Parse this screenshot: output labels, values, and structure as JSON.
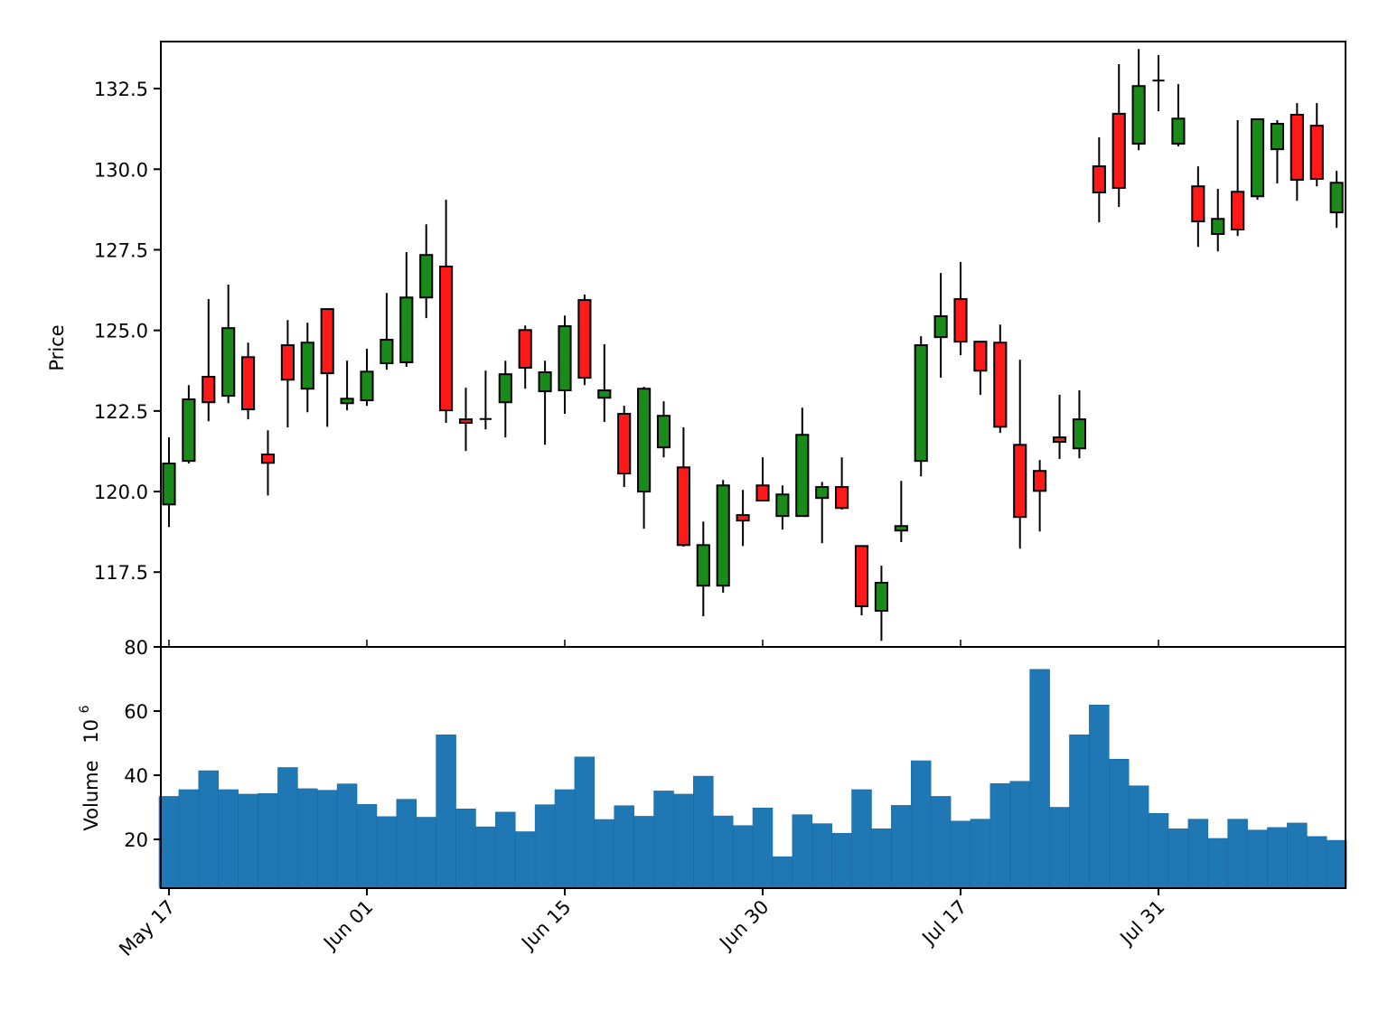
{
  "chart_data": {
    "type": "candlestick",
    "title": "",
    "layout": {
      "panels": [
        "price",
        "volume"
      ],
      "grid": false,
      "legend": "none"
    },
    "xaxis": {
      "tick_labels": [
        "May 17",
        "Jun 01",
        "Jun 15",
        "Jun 30",
        "Jul 17",
        "Jul 31"
      ],
      "tick_indices": [
        0,
        10,
        20,
        30,
        40,
        50
      ],
      "tick_rotation_deg": 45,
      "xlim": [
        -0.41,
        59.45
      ]
    },
    "price_panel": {
      "ylabel": "Price",
      "yticks": [
        117.5,
        120.0,
        122.5,
        125.0,
        127.5,
        130.0,
        132.5
      ],
      "ytick_labels": [
        "117.5",
        "120.0",
        "122.5",
        "125.0",
        "127.5",
        "130.0",
        "132.5"
      ],
      "ylim": [
        115.18,
        133.96
      ],
      "up_color": "#1a8a1a",
      "down_color": "#ff1a1a",
      "doji_color": "#000000",
      "edge_color": "#000000",
      "body_width": 0.6
    },
    "volume_panel": {
      "ylabel": "Volume",
      "ylabel_multiplier": "10",
      "ylabel_exponent": "6",
      "yticks": [
        20,
        40,
        60,
        80
      ],
      "ytick_labels": [
        "20",
        "40",
        "60",
        "80"
      ],
      "ylim": [
        4.8,
        80
      ],
      "bar_color": "#1f77b4",
      "bar_width": 1.0
    },
    "candles": [
      {
        "o": 119.6,
        "h": 121.68,
        "l": 118.9,
        "c": 120.87
      },
      {
        "o": 120.95,
        "h": 123.3,
        "l": 120.87,
        "c": 122.86
      },
      {
        "o": 123.56,
        "h": 125.97,
        "l": 122.18,
        "c": 122.77
      },
      {
        "o": 122.97,
        "h": 126.42,
        "l": 122.74,
        "c": 125.07
      },
      {
        "o": 124.17,
        "h": 124.62,
        "l": 122.24,
        "c": 122.55
      },
      {
        "o": 121.15,
        "h": 121.9,
        "l": 119.88,
        "c": 120.89
      },
      {
        "o": 124.54,
        "h": 125.32,
        "l": 121.99,
        "c": 123.47
      },
      {
        "o": 123.19,
        "h": 125.24,
        "l": 122.46,
        "c": 124.62
      },
      {
        "o": 125.66,
        "h": 125.66,
        "l": 122.01,
        "c": 123.67
      },
      {
        "o": 122.74,
        "h": 124.06,
        "l": 122.52,
        "c": 122.88
      },
      {
        "o": 122.83,
        "h": 124.43,
        "l": 122.66,
        "c": 123.72
      },
      {
        "o": 123.98,
        "h": 126.16,
        "l": 123.78,
        "c": 124.71
      },
      {
        "o": 124.01,
        "h": 127.43,
        "l": 123.87,
        "c": 126.02
      },
      {
        "o": 126.02,
        "h": 128.29,
        "l": 125.38,
        "c": 127.34
      },
      {
        "o": 126.98,
        "h": 129.05,
        "l": 122.13,
        "c": 122.52
      },
      {
        "o": 122.24,
        "h": 123.22,
        "l": 121.26,
        "c": 122.13
      },
      {
        "o": 122.25,
        "h": 123.75,
        "l": 121.93,
        "c": 122.25
      },
      {
        "o": 122.77,
        "h": 124.06,
        "l": 121.68,
        "c": 123.64
      },
      {
        "o": 125.01,
        "h": 125.15,
        "l": 123.19,
        "c": 123.84
      },
      {
        "o": 123.11,
        "h": 124.06,
        "l": 121.45,
        "c": 123.7
      },
      {
        "o": 123.14,
        "h": 125.46,
        "l": 122.41,
        "c": 125.13
      },
      {
        "o": 125.94,
        "h": 126.11,
        "l": 123.3,
        "c": 123.53
      },
      {
        "o": 122.91,
        "h": 124.57,
        "l": 122.16,
        "c": 123.14
      },
      {
        "o": 122.41,
        "h": 122.66,
        "l": 120.14,
        "c": 120.56
      },
      {
        "o": 120.0,
        "h": 123.25,
        "l": 118.85,
        "c": 123.19
      },
      {
        "o": 121.37,
        "h": 122.8,
        "l": 121.06,
        "c": 122.35
      },
      {
        "o": 120.75,
        "h": 121.99,
        "l": 118.29,
        "c": 118.34
      },
      {
        "o": 117.08,
        "h": 119.07,
        "l": 116.13,
        "c": 118.34
      },
      {
        "o": 117.08,
        "h": 120.36,
        "l": 116.86,
        "c": 120.19
      },
      {
        "o": 119.27,
        "h": 120.05,
        "l": 118.31,
        "c": 119.1
      },
      {
        "o": 120.19,
        "h": 121.06,
        "l": 119.72,
        "c": 119.72
      },
      {
        "o": 119.24,
        "h": 120.19,
        "l": 118.82,
        "c": 119.91
      },
      {
        "o": 119.24,
        "h": 122.6,
        "l": 119.24,
        "c": 121.76
      },
      {
        "o": 119.8,
        "h": 120.3,
        "l": 118.4,
        "c": 120.14
      },
      {
        "o": 120.14,
        "h": 121.06,
        "l": 119.44,
        "c": 119.49
      },
      {
        "o": 118.31,
        "h": 118.31,
        "l": 116.16,
        "c": 116.44
      },
      {
        "o": 116.3,
        "h": 117.7,
        "l": 115.37,
        "c": 117.17
      },
      {
        "o": 118.79,
        "h": 120.33,
        "l": 118.43,
        "c": 118.93
      },
      {
        "o": 120.95,
        "h": 124.82,
        "l": 120.47,
        "c": 124.54
      },
      {
        "o": 124.79,
        "h": 126.78,
        "l": 123.53,
        "c": 125.44
      },
      {
        "o": 125.97,
        "h": 127.12,
        "l": 124.23,
        "c": 124.65
      },
      {
        "o": 124.65,
        "h": 124.65,
        "l": 123.0,
        "c": 123.75
      },
      {
        "o": 124.62,
        "h": 125.18,
        "l": 121.82,
        "c": 122.01
      },
      {
        "o": 121.45,
        "h": 124.09,
        "l": 118.23,
        "c": 119.21
      },
      {
        "o": 120.64,
        "h": 120.98,
        "l": 118.76,
        "c": 120.02
      },
      {
        "o": 121.68,
        "h": 123.0,
        "l": 121.01,
        "c": 121.54
      },
      {
        "o": 121.34,
        "h": 123.14,
        "l": 121.03,
        "c": 122.24
      },
      {
        "o": 130.09,
        "h": 130.99,
        "l": 128.35,
        "c": 129.28
      },
      {
        "o": 131.72,
        "h": 133.26,
        "l": 128.83,
        "c": 129.42
      },
      {
        "o": 130.79,
        "h": 133.73,
        "l": 130.59,
        "c": 132.58
      },
      {
        "o": 132.75,
        "h": 133.54,
        "l": 131.8,
        "c": 132.75
      },
      {
        "o": 130.79,
        "h": 132.64,
        "l": 130.71,
        "c": 131.57
      },
      {
        "o": 129.47,
        "h": 130.09,
        "l": 127.59,
        "c": 128.38
      },
      {
        "o": 127.99,
        "h": 129.39,
        "l": 127.45,
        "c": 128.46
      },
      {
        "o": 129.3,
        "h": 131.52,
        "l": 127.93,
        "c": 128.13
      },
      {
        "o": 129.16,
        "h": 131.57,
        "l": 129.05,
        "c": 131.55
      },
      {
        "o": 130.62,
        "h": 131.52,
        "l": 129.56,
        "c": 131.41
      },
      {
        "o": 131.69,
        "h": 132.05,
        "l": 129.02,
        "c": 129.67
      },
      {
        "o": 131.35,
        "h": 132.05,
        "l": 129.47,
        "c": 129.7
      },
      {
        "o": 128.66,
        "h": 129.95,
        "l": 128.18,
        "c": 129.58
      }
    ],
    "volumes": [
      33.4,
      35.5,
      41.4,
      35.5,
      34.1,
      34.3,
      42.4,
      35.8,
      35.3,
      37.3,
      30.9,
      27.1,
      32.5,
      26.9,
      52.6,
      29.5,
      23.9,
      28.5,
      22.4,
      30.8,
      35.5,
      45.7,
      26.2,
      30.5,
      27.2,
      35.1,
      34.1,
      39.7,
      27.3,
      24.3,
      29.8,
      14.6,
      27.7,
      24.9,
      21.9,
      35.5,
      23.3,
      30.6,
      44.5,
      33.4,
      25.7,
      26.3,
      37.4,
      38.1,
      73.0,
      30.0,
      52.6,
      61.9,
      45.0,
      36.7,
      28.1,
      23.3,
      26.3,
      20.3,
      26.3,
      22.9,
      23.7,
      25.1,
      20.9,
      19.7
    ]
  }
}
